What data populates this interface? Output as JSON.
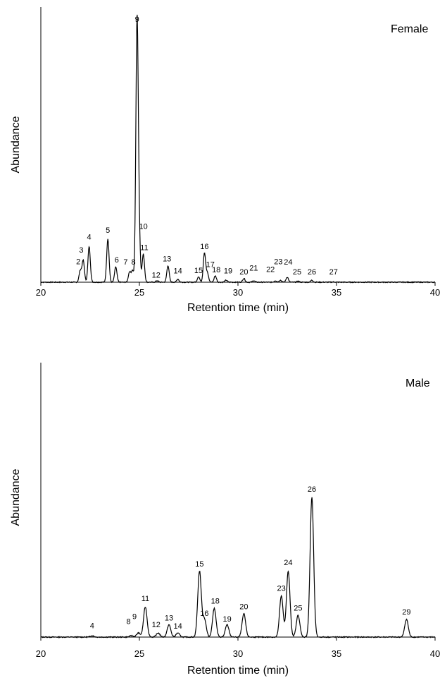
{
  "chart_data": [
    {
      "type": "line",
      "panel_title": "Female",
      "xlabel": "Retention time (min)",
      "ylabel": "Abundance",
      "xlim": [
        20,
        40
      ],
      "x_ticks": [
        20,
        25,
        30,
        35,
        40
      ],
      "x_tick_labels": [
        "20",
        "25",
        "30",
        "35",
        "40"
      ],
      "ylim": [
        0,
        100
      ],
      "peaks": [
        {
          "label": "2",
          "x": 22.0,
          "height": 4.5,
          "label_x": 21.9,
          "label_y": 7.1
        },
        {
          "label": "3",
          "x": 22.15,
          "height": 8.5,
          "label_x": 22.05,
          "label_y": 11.6
        },
        {
          "label": "4",
          "x": 22.45,
          "height": 14.0,
          "label_x": 22.45,
          "label_y": 16.7
        },
        {
          "label": "5",
          "x": 23.4,
          "height": 17.0,
          "label_x": 23.4,
          "label_y": 19.3
        },
        {
          "label": "6",
          "x": 23.8,
          "height": 6.0,
          "label_x": 23.85,
          "label_y": 7.7
        },
        {
          "label": "7",
          "x": 24.5,
          "height": 4.0,
          "label_x": 24.3,
          "label_y": 6.9
        },
        {
          "label": "8",
          "x": 24.65,
          "height": 4.5,
          "label_x": 24.7,
          "label_y": 6.9
        },
        {
          "label": "9",
          "x": 24.88,
          "height": 100.0,
          "label_x": 24.88,
          "label_y": 101.9
        },
        {
          "label": "10",
          "x": 24.98,
          "height": 18.0,
          "label_x": 25.2,
          "label_y": 20.9
        },
        {
          "label": "11",
          "x": 25.2,
          "height": 11.0,
          "label_x": 25.25,
          "label_y": 12.6
        },
        {
          "label": "12",
          "x": 25.9,
          "height": 0.6,
          "label_x": 25.85,
          "label_y": 1.8
        },
        {
          "label": "13",
          "x": 26.45,
          "height": 6.5,
          "label_x": 26.4,
          "label_y": 8.2
        },
        {
          "label": "14",
          "x": 26.95,
          "height": 1.2,
          "label_x": 26.95,
          "label_y": 3.5
        },
        {
          "label": "15",
          "x": 28.0,
          "height": 2.2,
          "label_x": 28.0,
          "label_y": 3.6
        },
        {
          "label": "16",
          "x": 28.3,
          "height": 11.5,
          "label_x": 28.3,
          "label_y": 13.0
        },
        {
          "label": "17",
          "x": 28.45,
          "height": 3.5,
          "label_x": 28.6,
          "label_y": 6.0
        },
        {
          "label": "18",
          "x": 28.85,
          "height": 2.5,
          "label_x": 28.9,
          "label_y": 3.9
        },
        {
          "label": "19",
          "x": 29.4,
          "height": 0.8,
          "label_x": 29.5,
          "label_y": 3.4
        },
        {
          "label": "20",
          "x": 30.3,
          "height": 1.5,
          "label_x": 30.3,
          "label_y": 3.1
        },
        {
          "label": "21",
          "x": 30.8,
          "height": 0.6,
          "label_x": 30.8,
          "label_y": 4.6
        },
        {
          "label": "22",
          "x": 31.9,
          "height": 0.6,
          "label_x": 31.65,
          "label_y": 4.0
        },
        {
          "label": "23",
          "x": 32.15,
          "height": 0.8,
          "label_x": 32.05,
          "label_y": 7.1
        },
        {
          "label": "24",
          "x": 32.5,
          "height": 2.0,
          "label_x": 32.55,
          "label_y": 6.9
        },
        {
          "label": "25",
          "x": 33.05,
          "height": 0.4,
          "label_x": 33.0,
          "label_y": 3.1
        },
        {
          "label": "26",
          "x": 33.75,
          "height": 0.8,
          "label_x": 33.75,
          "label_y": 3.1
        },
        {
          "label": "27",
          "x": 34.85,
          "height": 0.1,
          "label_x": 34.85,
          "label_y": 3.1
        }
      ]
    },
    {
      "type": "line",
      "panel_title": "Male",
      "xlabel": "Retention time (min)",
      "ylabel": "Abundance",
      "xlim": [
        20,
        40
      ],
      "x_ticks": [
        20,
        25,
        30,
        35,
        40
      ],
      "x_tick_labels": [
        "20",
        "25",
        "30",
        "35",
        "40"
      ],
      "ylim": [
        0,
        100
      ],
      "peaks": [
        {
          "label": "4",
          "x": 22.6,
          "height": 0.5,
          "label_x": 22.6,
          "label_y": 3.2
        },
        {
          "label": "8",
          "x": 24.6,
          "height": 0.5,
          "label_x": 24.45,
          "label_y": 4.7
        },
        {
          "label": "9",
          "x": 24.95,
          "height": 1.5,
          "label_x": 24.75,
          "label_y": 6.6
        },
        {
          "label": "11",
          "x": 25.3,
          "height": 11.0,
          "label_x": 25.3,
          "label_y": 13.1
        },
        {
          "label": "12",
          "x": 25.95,
          "height": 1.5,
          "label_x": 25.85,
          "label_y": 3.6
        },
        {
          "label": "13",
          "x": 26.5,
          "height": 4.5,
          "label_x": 26.5,
          "label_y": 6.1
        },
        {
          "label": "14",
          "x": 26.95,
          "height": 1.5,
          "label_x": 26.95,
          "label_y": 3.1
        },
        {
          "label": "15",
          "x": 28.05,
          "height": 24.0,
          "label_x": 28.05,
          "label_y": 25.7
        },
        {
          "label": "16",
          "x": 28.3,
          "height": 6.5,
          "label_x": 28.3,
          "label_y": 7.7
        },
        {
          "label": "18",
          "x": 28.8,
          "height": 10.5,
          "label_x": 28.85,
          "label_y": 12.2
        },
        {
          "label": "19",
          "x": 29.45,
          "height": 4.5,
          "label_x": 29.45,
          "label_y": 5.6
        },
        {
          "label": "20",
          "x": 30.3,
          "height": 8.5,
          "label_x": 30.3,
          "label_y": 10.2
        },
        {
          "label": "23",
          "x": 32.2,
          "height": 15.0,
          "label_x": 32.2,
          "label_y": 16.9
        },
        {
          "label": "24",
          "x": 32.55,
          "height": 24.0,
          "label_x": 32.55,
          "label_y": 26.2
        },
        {
          "label": "25",
          "x": 33.05,
          "height": 8.0,
          "label_x": 33.05,
          "label_y": 9.7
        },
        {
          "label": "26",
          "x": 33.75,
          "height": 51.0,
          "label_x": 33.75,
          "label_y": 52.9
        },
        {
          "label": "29",
          "x": 38.55,
          "height": 6.5,
          "label_x": 38.55,
          "label_y": 8.2
        }
      ]
    }
  ]
}
